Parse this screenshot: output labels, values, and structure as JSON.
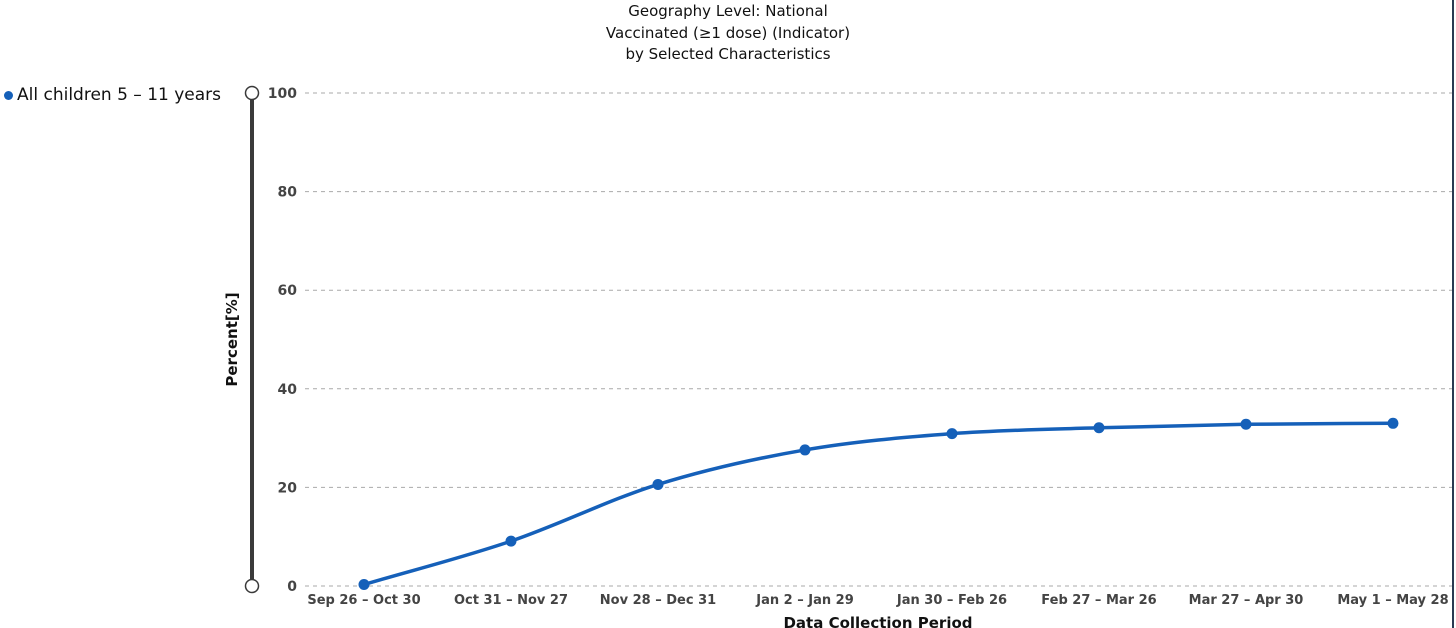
{
  "title_lines": [
    "Geography Level: National",
    "Vaccinated (≥1 dose) (Indicator)",
    "by Selected Characteristics"
  ],
  "colors": {
    "series": "#1560b9",
    "grid": "#a9a9a9",
    "slider": "#3a3a3a"
  },
  "chart_data": {
    "type": "line",
    "title": "Geography Level: National Vaccinated (≥1 dose) (Indicator) by Selected Characteristics",
    "xlabel": "Data Collection Period",
    "ylabel": "Percent[%]",
    "ylim": [
      0,
      100
    ],
    "yticks": [
      0,
      20,
      40,
      60,
      80,
      100
    ],
    "grid": true,
    "legend_position": "top-left",
    "categories": [
      "Sep 26 – Oct 30",
      "Oct 31 – Nov 27",
      "Nov 28 – Dec 31",
      "Jan 2 – Jan 29",
      "Jan 30 – Feb 26",
      "Feb 27 – Mar 26",
      "Mar 27 – Apr 30",
      "May 1 – May 28"
    ],
    "series": [
      {
        "name": "All children 5 – 11 years",
        "values": [
          0.3,
          9.1,
          20.6,
          27.6,
          30.9,
          32.1,
          32.8,
          33.0
        ]
      }
    ]
  }
}
